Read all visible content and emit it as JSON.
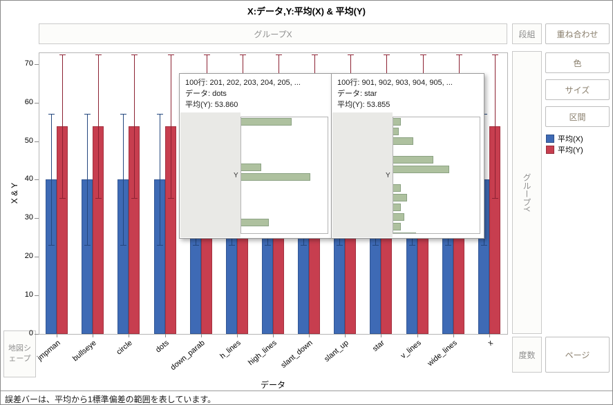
{
  "title": "X:データ,Y:平均(X) & 平均(Y)",
  "zones": {
    "group_x": "グループX",
    "column_group": "段組",
    "overlay": "重ね合わせ",
    "color": "色",
    "size": "サイズ",
    "interval": "区間",
    "group_y": "グループY",
    "frequency": "度数",
    "page": "ページ",
    "map_shape": "地図シェープ"
  },
  "legend": {
    "items": [
      {
        "label": "平均(X)",
        "color": "#3e6ab5"
      },
      {
        "label": "平均(Y)",
        "color": "#c73e4f"
      }
    ]
  },
  "footer": "誤差バーは、平均から1標準偏差の範囲を表しています。",
  "chart_data": {
    "type": "bar",
    "title": "X:データ,Y:平均(X) & 平均(Y)",
    "xlabel": "データ",
    "ylabel": "X & Y",
    "ylim": [
      0,
      73
    ],
    "yticks": [
      0,
      10,
      20,
      30,
      40,
      50,
      60,
      70
    ],
    "grid": false,
    "legend_position": "right",
    "error_bar_note": "誤差バーは、平均から1標準偏差の範囲を表しています。",
    "categories": [
      "jmpman",
      "bullseye",
      "circle",
      "dots",
      "down_parab",
      "h_lines",
      "high_lines",
      "slant_down",
      "slant_up",
      "star",
      "v_lines",
      "wide_lines",
      "x"
    ],
    "series": [
      {
        "name": "平均(X)",
        "color": "#3e6ab5",
        "values": [
          40,
          40,
          40,
          40,
          40,
          40,
          40,
          40,
          40,
          40,
          40,
          40,
          40
        ],
        "error_bar": {
          "low": 23.1,
          "high": 57.0,
          "color": "#24477e"
        }
      },
      {
        "name": "平均(Y)",
        "color": "#c73e4f",
        "values": [
          53.86,
          53.86,
          53.86,
          53.86,
          53.86,
          53.86,
          53.86,
          53.86,
          53.86,
          53.855,
          53.86,
          53.86,
          53.86
        ],
        "error_bar": {
          "low": 35.2,
          "high": 72.5,
          "color": "#8c2132"
        }
      }
    ]
  },
  "tooltips": [
    {
      "line_rows": "100行: 201, 202, 203, 204, 205, ...",
      "line_data": "データ: dots",
      "line_mean": "平均(Y): 53.860",
      "hist_axis": "Y",
      "hist_bars": [
        0.58,
        0,
        0,
        0,
        0,
        0.23,
        0.8,
        0,
        0,
        0,
        0,
        0.32,
        0
      ]
    },
    {
      "line_rows": "100行: 901, 902, 903, 904, 905, ...",
      "line_data": "データ: star",
      "line_mean": "平均(Y): 53.855",
      "hist_axis": "Y",
      "hist_bars": [
        0.09,
        0.06,
        0.23,
        0,
        0.46,
        0.65,
        0,
        0.09,
        0.16,
        0.09,
        0.13,
        0.09,
        0.26
      ]
    }
  ]
}
